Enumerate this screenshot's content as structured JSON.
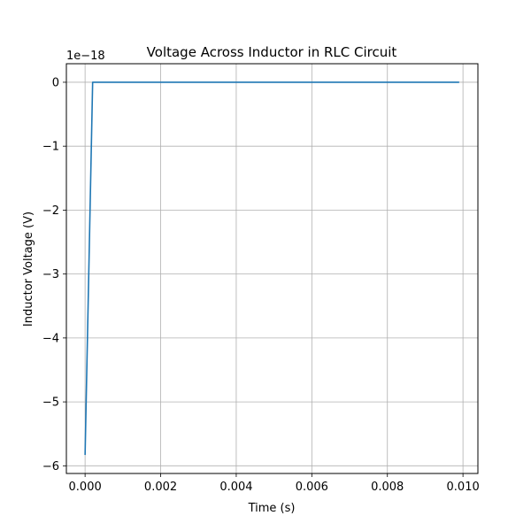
{
  "chart_data": {
    "type": "line",
    "title": "Voltage Across Inductor in RLC Circuit",
    "xlabel": "Time (s)",
    "ylabel": "Inductor Voltage (V)",
    "offset_text": "1e−18",
    "xlim": [
      -0.000495,
      0.010395
    ],
    "ylim": [
      -6.12,
      0.29
    ],
    "grid": true,
    "legend": "none",
    "x_ticks": [
      0.0,
      0.002,
      0.004,
      0.006,
      0.008,
      0.01
    ],
    "x_tick_labels": [
      "0.000",
      "0.002",
      "0.004",
      "0.006",
      "0.008",
      "0.010"
    ],
    "y_ticks": [
      0,
      -1,
      -2,
      -3,
      -4,
      -5,
      -6
    ],
    "y_tick_labels": [
      "0",
      "−1",
      "−2",
      "−3",
      "−4",
      "−5",
      "−6"
    ],
    "series": [
      {
        "color": "#1f77b4",
        "x": [
          0.0,
          0.0002,
          0.0099
        ],
        "y": [
          -5.83,
          0.0,
          0.0
        ]
      }
    ]
  }
}
